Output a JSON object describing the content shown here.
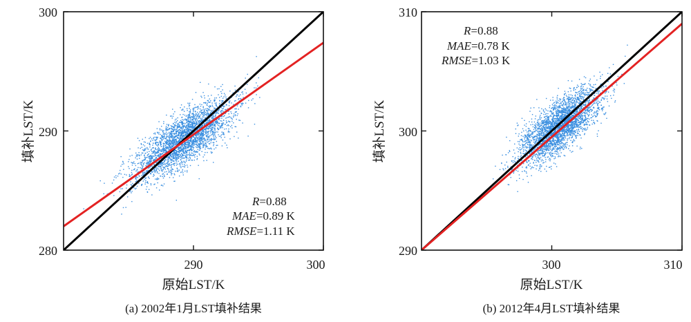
{
  "chart_data": [
    {
      "type": "scatter",
      "caption": "(a) 2002年1月LST填补结果",
      "xlabel": "原始LST/K",
      "ylabel": "填补LST/K",
      "xlim": [
        280,
        300
      ],
      "ylim": [
        280,
        300
      ],
      "xticks": [
        "290",
        "300"
      ],
      "yticks": [
        "280",
        "290",
        "300"
      ],
      "stats": [
        {
          "name": "R",
          "value": "=0.88"
        },
        {
          "name": "MAE",
          "value": "=0.89 K"
        },
        {
          "name": "RMSE",
          "value": "=1.11 K"
        }
      ],
      "stats_position": "bottom-right",
      "point_color": "#3a8fe0",
      "point_cloud": {
        "center": [
          289.3,
          289.3
        ],
        "sd_along": 2.4,
        "sd_across": 0.85,
        "slope": 0.82,
        "n": 3200
      },
      "lines": [
        {
          "kind": "1:1",
          "color": "#000000",
          "x": [
            280,
            300
          ],
          "y": [
            280,
            300
          ]
        },
        {
          "kind": "fit",
          "color": "#e32222",
          "x": [
            280,
            300
          ],
          "y": [
            282.0,
            297.4
          ]
        }
      ],
      "grid": false
    },
    {
      "type": "scatter",
      "caption": "(b) 2012年4月LST填补结果",
      "xlabel": "原始LST/K",
      "ylabel": "填补LST/K",
      "xlim": [
        290,
        310
      ],
      "ylim": [
        290,
        310
      ],
      "xticks": [
        "300",
        "310"
      ],
      "yticks": [
        "290",
        "300",
        "310"
      ],
      "stats": [
        {
          "name": "R",
          "value": "=0.88"
        },
        {
          "name": "MAE",
          "value": "=0.78 K"
        },
        {
          "name": "RMSE",
          "value": "=1.03 K"
        }
      ],
      "stats_position": "top-left",
      "point_color": "#3a8fe0",
      "point_cloud": {
        "center": [
          300.6,
          300.4
        ],
        "sd_along": 2.1,
        "sd_across": 0.8,
        "slope": 1.0,
        "n": 3200
      },
      "lines": [
        {
          "kind": "1:1",
          "color": "#000000",
          "x": [
            290,
            310
          ],
          "y": [
            290,
            310
          ]
        },
        {
          "kind": "fit",
          "color": "#e32222",
          "x": [
            290,
            310
          ],
          "y": [
            290.0,
            309.0
          ]
        }
      ],
      "grid": false
    }
  ]
}
